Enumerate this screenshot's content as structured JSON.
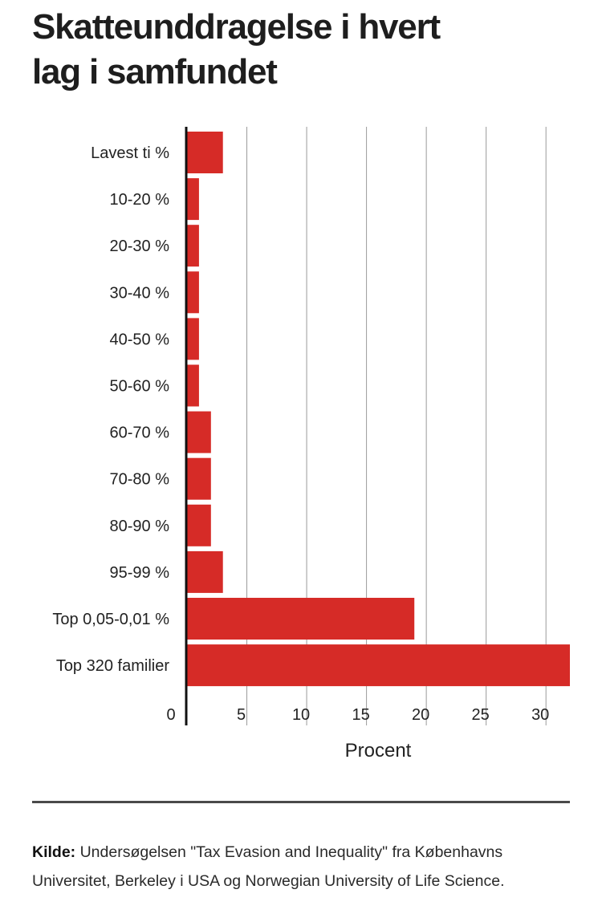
{
  "chart_data": {
    "type": "bar",
    "orientation": "horizontal",
    "title_lines": [
      "Skatteunddragelse i hvert",
      "lag i samfundet"
    ],
    "categories": [
      "Lavest ti %",
      "10-20 %",
      "20-30 %",
      "30-40 %",
      "40-50 %",
      "50-60 %",
      "60-70 %",
      "70-80 %",
      "80-90 %",
      "95-99 %",
      "Top 0,05-0,01 %",
      "Top 320 familier"
    ],
    "values": [
      3,
      1,
      1,
      1,
      1,
      1,
      2,
      2,
      2,
      3,
      19,
      32
    ],
    "xlabel": "Procent",
    "xticks": [
      0,
      5,
      10,
      15,
      20,
      25,
      30
    ],
    "xlim": [
      0,
      32
    ],
    "grid": true,
    "bar_color": "#d62b27"
  },
  "source": {
    "label": "Kilde:",
    "text": "Undersøgelsen \"Tax Evasion and Inequality\" fra Københavns Universitet, Berkeley i USA og Norwegian University of Life Science."
  }
}
